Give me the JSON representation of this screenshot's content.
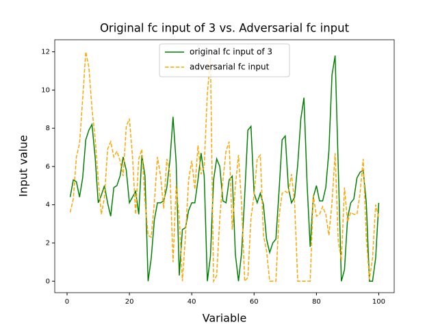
{
  "chart_data": {
    "type": "line",
    "title": "Original fc input of 3 vs. Adversarial fc input",
    "x_label": "Variable",
    "y_label": "Input value",
    "x": [
      1,
      2,
      3,
      4,
      5,
      6,
      7,
      8,
      9,
      10,
      11,
      12,
      13,
      14,
      15,
      16,
      17,
      18,
      19,
      20,
      21,
      22,
      23,
      24,
      25,
      26,
      27,
      28,
      29,
      30,
      31,
      32,
      33,
      34,
      35,
      36,
      37,
      38,
      39,
      40,
      41,
      42,
      43,
      44,
      45,
      46,
      47,
      48,
      49,
      50,
      51,
      52,
      53,
      54,
      55,
      56,
      57,
      58,
      59,
      60,
      61,
      62,
      63,
      64,
      65,
      66,
      67,
      68,
      69,
      70,
      71,
      72,
      73,
      74,
      75,
      76,
      77,
      78,
      79,
      80,
      81,
      82,
      83,
      84,
      85,
      86,
      87,
      88,
      89,
      90,
      91,
      92,
      93,
      94,
      95,
      96,
      97,
      98,
      99,
      100
    ],
    "series": [
      {
        "name": "original fc input of 3",
        "color": "#008000",
        "dash": "solid",
        "values": [
          4.4,
          5.3,
          5.2,
          4.4,
          5.4,
          7.4,
          7.9,
          8.2,
          6.5,
          4.1,
          4.5,
          5.0,
          4.1,
          3.4,
          4.9,
          5.0,
          5.5,
          6.5,
          5.8,
          4.1,
          4.4,
          4.7,
          3.5,
          6.6,
          5.5,
          0,
          1.2,
          3.2,
          4.1,
          4.1,
          4.2,
          4.9,
          6.3,
          8.6,
          6.2,
          0.3,
          2.7,
          2.8,
          3.7,
          4.1,
          4.1,
          5.3,
          6.7,
          5.5,
          0,
          1.3,
          5.3,
          6.4,
          6.0,
          4.2,
          4.1,
          5.3,
          5.5,
          1.4,
          0,
          1.5,
          4.5,
          7.9,
          8.1,
          4.6,
          4.1,
          4.6,
          4.0,
          2.2,
          1.5,
          2.0,
          2.2,
          4.7,
          7.4,
          7.6,
          4.9,
          4.1,
          4.4,
          6.1,
          8.5,
          9.6,
          5.1,
          1.8,
          4.4,
          5.0,
          4.2,
          4.2,
          4.9,
          6.8,
          10.8,
          11.8,
          6.0,
          0,
          0.6,
          3.3,
          4.1,
          4.3,
          5.4,
          5.7,
          5.8,
          4.1,
          0,
          0,
          1.2,
          4.1
        ]
      },
      {
        "name": "adversarial fc input",
        "color": "#ffa500",
        "dash": "dashed",
        "values": [
          3.6,
          4.3,
          6.5,
          7.2,
          9.5,
          12.0,
          11.2,
          9.0,
          7.5,
          5.3,
          3.5,
          4.4,
          6.9,
          7.3,
          6.5,
          6.8,
          6.3,
          5.5,
          8.1,
          8.5,
          6.5,
          3.5,
          6.4,
          6.9,
          4.2,
          2.4,
          2.3,
          4.1,
          6.5,
          5.5,
          3.8,
          6.4,
          5.7,
          1.0,
          5.0,
          3.3,
          0,
          2.4,
          5.3,
          6.3,
          4.8,
          7.1,
          5.6,
          6.0,
          9.8,
          11.7,
          0,
          0.3,
          3.3,
          5.3,
          6.8,
          7.3,
          2.7,
          5.0,
          6.6,
          4.0,
          0,
          0.2,
          3.3,
          4.5,
          6.4,
          6.6,
          2.4,
          1.6,
          0,
          0,
          0,
          3.4,
          4.6,
          4.7,
          4.6,
          5.6,
          4.1,
          0,
          0,
          0,
          0,
          0,
          4.5,
          3.4,
          3.5,
          3.9,
          3.5,
          2.4,
          4.1,
          6.7,
          2.1,
          1.1,
          4.9,
          3.1,
          3.6,
          3.5,
          3.5,
          4.6,
          6.4,
          2.3,
          0.1,
          1.2,
          4.0,
          3.3
        ]
      }
    ],
    "xlim": [
      -3.95,
      104.95
    ],
    "ylim": [
      -0.6,
      12.63
    ],
    "xticks": [
      0,
      20,
      40,
      60,
      80,
      100
    ],
    "yticks": [
      0,
      2,
      4,
      6,
      8,
      10,
      12
    ],
    "legend": "upper center"
  }
}
